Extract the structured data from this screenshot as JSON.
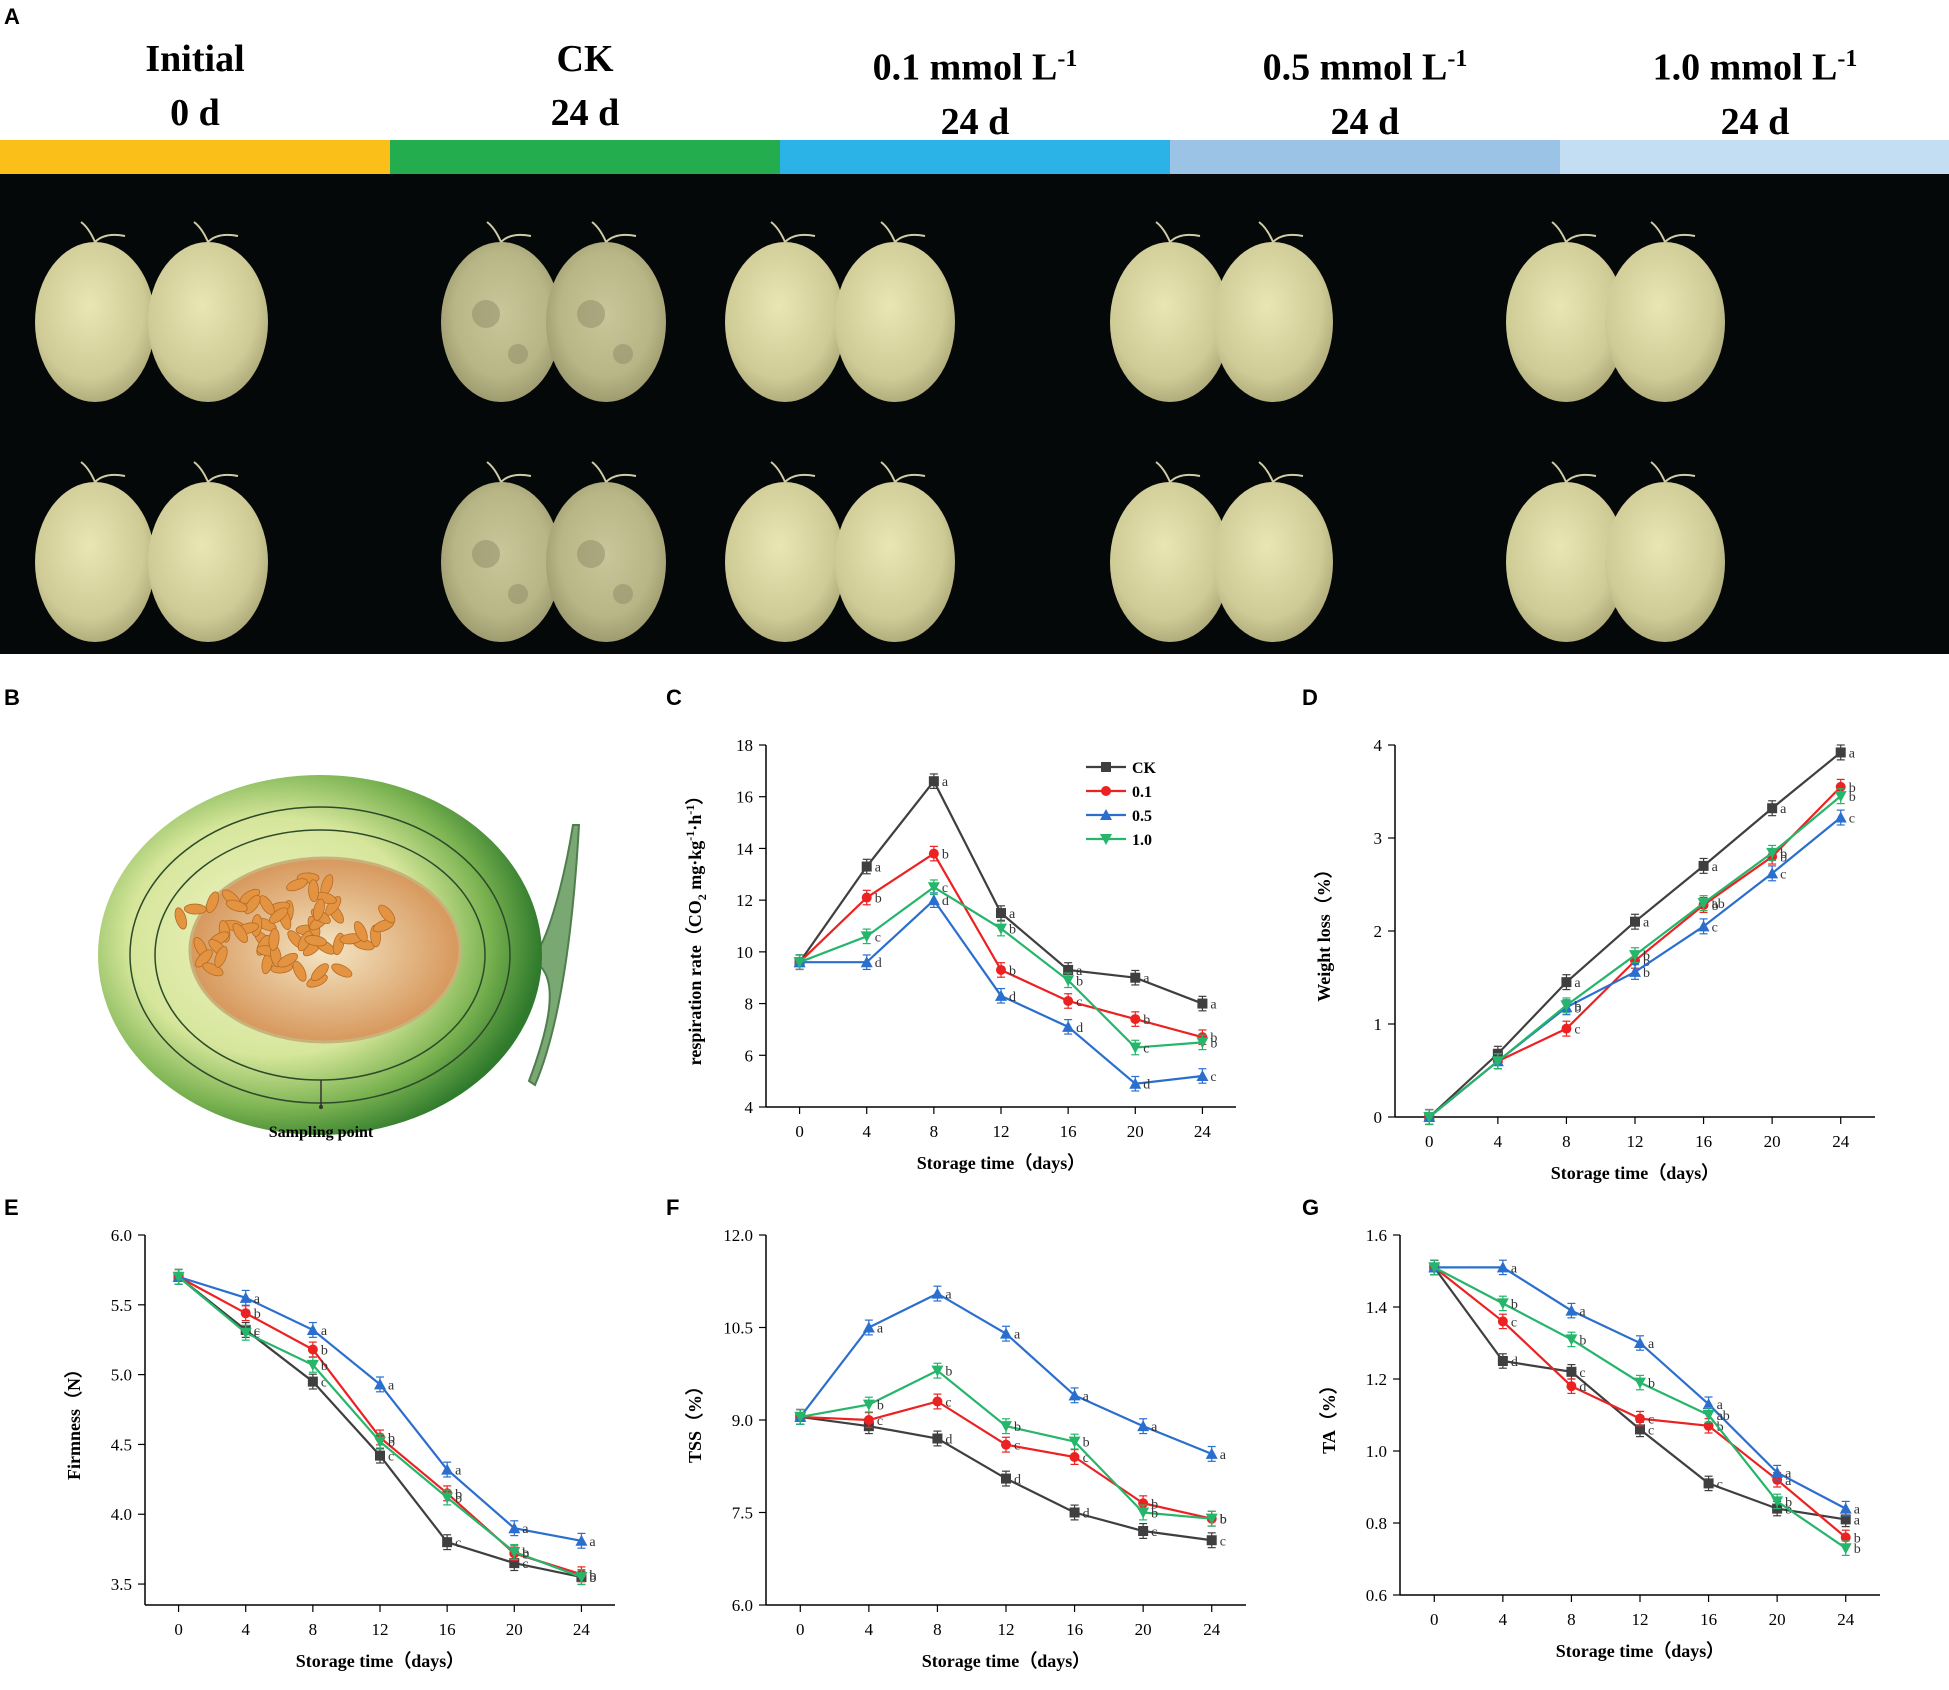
{
  "panel_letters": {
    "A": "A",
    "B": "B",
    "C": "C",
    "D": "D",
    "E": "E",
    "F": "F",
    "G": "G"
  },
  "panel_a": {
    "groups": [
      {
        "name": "Initial",
        "conc": "",
        "unit_sup": "",
        "day": "0 d",
        "color": "#fbbf1a"
      },
      {
        "name": "CK",
        "conc": "",
        "unit_sup": "",
        "day": "24 d",
        "color": "#23ad4e"
      },
      {
        "name": "",
        "conc": "0.1 mmol L",
        "unit_sup": "-1",
        "day": "24 d",
        "color": "#2bb2e6"
      },
      {
        "name": "",
        "conc": "0.5 mmol L",
        "unit_sup": "-1",
        "day": "24 d",
        "color": "#9ac3e6"
      },
      {
        "name": "",
        "conc": "1.0 mmol L",
        "unit_sup": "-1",
        "day": "24 d",
        "color": "#c3ddf3"
      }
    ]
  },
  "panel_b": {
    "label": "Sampling point"
  },
  "series_colors": {
    "CK": "#3f3f3f",
    "0.1": "#ec2222",
    "0.5": "#2b6fce",
    "1.0": "#25b56b"
  },
  "chart_data": [
    {
      "id": "C",
      "type": "line",
      "title": "",
      "xlabel": "Storage time（days）",
      "ylabel_main": "respiration rate（CO",
      "ylabel_sub": "2",
      "ylabel_rest": " mg·kg",
      "ylabel_sup1": "-1",
      "ylabel_mid": "·h",
      "ylabel_sup2": "-1",
      "ylabel_end": "）",
      "x": [
        0,
        4,
        8,
        12,
        16,
        20,
        24
      ],
      "xlim": [
        -2,
        26
      ],
      "ylim": [
        4,
        18
      ],
      "yticks": [
        4,
        6,
        8,
        10,
        12,
        14,
        16,
        18
      ],
      "ytick_labels": [
        "4",
        "6",
        "8",
        "10",
        "12",
        "14",
        "16",
        "18"
      ],
      "legend": [
        "CK",
        "0.1",
        "0.5",
        "1.0"
      ],
      "legend_position": "top-right",
      "series": [
        {
          "name": "CK",
          "values": [
            9.6,
            13.3,
            16.6,
            11.5,
            9.3,
            9.0,
            8.0
          ],
          "letters": [
            "",
            "a",
            "a",
            "a",
            "a",
            "a",
            "a"
          ]
        },
        {
          "name": "0.1",
          "values": [
            9.6,
            12.1,
            13.8,
            9.3,
            8.1,
            7.4,
            6.7
          ],
          "letters": [
            "",
            "b",
            "b",
            "b",
            "c",
            "b",
            "b"
          ]
        },
        {
          "name": "0.5",
          "values": [
            9.6,
            9.6,
            12.0,
            8.3,
            7.1,
            4.9,
            5.2
          ],
          "letters": [
            "",
            "d",
            "d",
            "d",
            "d",
            "d",
            "c"
          ]
        },
        {
          "name": "1.0",
          "values": [
            9.6,
            10.6,
            12.5,
            10.9,
            8.9,
            6.3,
            6.5
          ],
          "letters": [
            "",
            "c",
            "c",
            "b",
            "b",
            "c",
            "b"
          ]
        }
      ]
    },
    {
      "id": "D",
      "type": "line",
      "title": "",
      "xlabel": "Storage time（days）",
      "ylabel": "Weight loss（%）",
      "x": [
        0,
        4,
        8,
        12,
        16,
        20,
        24
      ],
      "xlim": [
        -2,
        26
      ],
      "ylim": [
        0,
        4
      ],
      "yticks": [
        0,
        1,
        2,
        3,
        4
      ],
      "ytick_labels": [
        "0",
        "1",
        "2",
        "3",
        "4"
      ],
      "series": [
        {
          "name": "CK",
          "values": [
            0,
            0.68,
            1.45,
            2.1,
            2.7,
            3.32,
            3.92
          ],
          "letters": [
            "",
            "",
            "a",
            "a",
            "a",
            "a",
            "a"
          ]
        },
        {
          "name": "0.1",
          "values": [
            0,
            0.6,
            0.95,
            1.68,
            2.28,
            2.8,
            3.55
          ],
          "letters": [
            "",
            "",
            "c",
            "b",
            "b",
            "b",
            "b"
          ]
        },
        {
          "name": "0.5",
          "values": [
            0,
            0.6,
            1.18,
            1.56,
            2.05,
            2.62,
            3.22
          ],
          "letters": [
            "",
            "",
            "b",
            "b",
            "c",
            "c",
            "c"
          ]
        },
        {
          "name": "1.0",
          "values": [
            0,
            0.6,
            1.2,
            1.74,
            2.3,
            2.84,
            3.45
          ],
          "letters": [
            "",
            "",
            "b",
            "b",
            "ab",
            "b",
            "b"
          ]
        }
      ]
    },
    {
      "id": "E",
      "type": "line",
      "title": "",
      "xlabel": "Storage time（days）",
      "ylabel": "Firmness（N）",
      "x": [
        0,
        4,
        8,
        12,
        16,
        20,
        24
      ],
      "xlim": [
        -2,
        26
      ],
      "ylim": [
        3.35,
        6.0
      ],
      "yticks": [
        3.5,
        4.0,
        4.5,
        5.0,
        5.5,
        6.0
      ],
      "ytick_labels": [
        "3.5",
        "4.0",
        "4.5",
        "5.0",
        "5.5",
        "6.0"
      ],
      "series": [
        {
          "name": "CK",
          "values": [
            5.7,
            5.32,
            4.95,
            4.42,
            3.8,
            3.65,
            3.55
          ],
          "letters": [
            "",
            "c",
            "c",
            "c",
            "c",
            "c",
            "b"
          ]
        },
        {
          "name": "0.1",
          "values": [
            5.7,
            5.44,
            5.18,
            4.55,
            4.15,
            3.72,
            3.57
          ],
          "letters": [
            "",
            "b",
            "b",
            "b",
            "b",
            "b",
            "b"
          ]
        },
        {
          "name": "0.5",
          "values": [
            5.7,
            5.55,
            5.32,
            4.93,
            4.32,
            3.9,
            3.81
          ],
          "letters": [
            "",
            "a",
            "a",
            "a",
            "a",
            "a",
            "a"
          ]
        },
        {
          "name": "1.0",
          "values": [
            5.7,
            5.3,
            5.07,
            4.52,
            4.12,
            3.73,
            3.55
          ],
          "letters": [
            "",
            "c",
            "b",
            "b",
            "b",
            "b",
            "b"
          ]
        }
      ]
    },
    {
      "id": "F",
      "type": "line",
      "title": "",
      "xlabel": "Storage time（days）",
      "ylabel": "TSS（%）",
      "x": [
        0,
        4,
        8,
        12,
        16,
        20,
        24
      ],
      "xlim": [
        -2,
        26
      ],
      "ylim": [
        6.0,
        12.0
      ],
      "yticks": [
        6.0,
        7.5,
        9.0,
        10.5,
        12.0
      ],
      "ytick_labels": [
        "6.0",
        "7.5",
        "9.0",
        "10.5",
        "12.0"
      ],
      "series": [
        {
          "name": "CK",
          "values": [
            9.05,
            8.9,
            8.7,
            8.05,
            7.5,
            7.2,
            7.05
          ],
          "letters": [
            "",
            "",
            "d",
            "d",
            "d",
            "c",
            "c"
          ]
        },
        {
          "name": "0.1",
          "values": [
            9.05,
            9.0,
            9.3,
            8.6,
            8.4,
            7.65,
            7.4
          ],
          "letters": [
            "",
            "c",
            "c",
            "c",
            "c",
            "b",
            "b"
          ]
        },
        {
          "name": "0.5",
          "values": [
            9.05,
            10.5,
            11.05,
            10.4,
            9.4,
            8.9,
            8.45
          ],
          "letters": [
            "",
            "a",
            "a",
            "a",
            "a",
            "a",
            "a"
          ]
        },
        {
          "name": "1.0",
          "values": [
            9.05,
            9.25,
            9.8,
            8.9,
            8.65,
            7.5,
            7.4
          ],
          "letters": [
            "",
            "b",
            "b",
            "b",
            "b",
            "b",
            "b"
          ]
        }
      ]
    },
    {
      "id": "G",
      "type": "line",
      "title": "",
      "xlabel": "Storage time（days）",
      "ylabel": "TA（%）",
      "x": [
        0,
        4,
        8,
        12,
        16,
        20,
        24
      ],
      "xlim": [
        -2,
        26
      ],
      "ylim": [
        0.6,
        1.6
      ],
      "yticks": [
        0.6,
        0.8,
        1.0,
        1.2,
        1.4,
        1.6
      ],
      "ytick_labels": [
        "0.6",
        "0.8",
        "1.0",
        "1.2",
        "1.4",
        "1.6"
      ],
      "series": [
        {
          "name": "CK",
          "values": [
            1.51,
            1.25,
            1.22,
            1.06,
            0.91,
            0.84,
            0.81
          ],
          "letters": [
            "",
            "d",
            "c",
            "c",
            "c",
            "b",
            "a"
          ]
        },
        {
          "name": "0.1",
          "values": [
            1.51,
            1.36,
            1.18,
            1.09,
            1.07,
            0.92,
            0.76
          ],
          "letters": [
            "",
            "c",
            "d",
            "c",
            "b",
            "a",
            "b"
          ]
        },
        {
          "name": "0.5",
          "values": [
            1.51,
            1.51,
            1.39,
            1.3,
            1.13,
            0.94,
            0.84
          ],
          "letters": [
            "",
            "a",
            "a",
            "a",
            "a",
            "a",
            "a"
          ]
        },
        {
          "name": "1.0",
          "values": [
            1.51,
            1.41,
            1.31,
            1.19,
            1.1,
            0.86,
            0.73
          ],
          "letters": [
            "",
            "b",
            "b",
            "b",
            "ab",
            "b",
            "b"
          ]
        }
      ]
    }
  ]
}
